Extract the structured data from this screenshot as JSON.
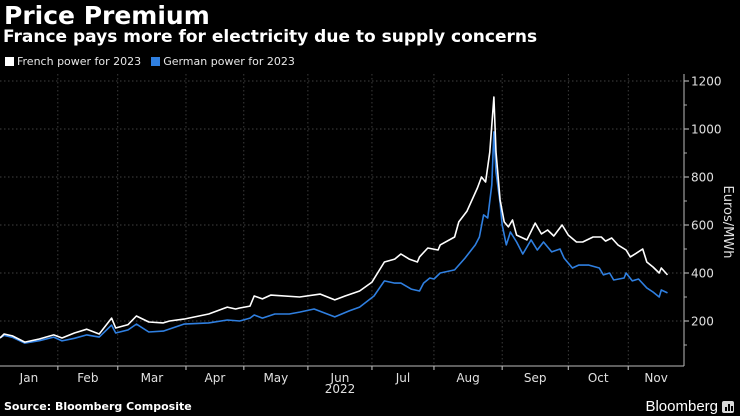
{
  "title": "Price Premium",
  "subtitle": "France pays more for electricity due to supply concerns",
  "source": "Source: Bloomberg Composite",
  "brand": "Bloomberg",
  "chart_data": {
    "type": "line",
    "title": "Price Premium",
    "subtitle": "France pays more for electricity due to supply concerns",
    "xlabel": "2022",
    "ylabel": "Euros/MWh",
    "ylim": [
      0,
      1200
    ],
    "yticks": [
      200,
      400,
      600,
      800,
      1000,
      1200
    ],
    "ytick_labels": [
      "200",
      "400",
      "600",
      "800",
      "1000",
      "1200"
    ],
    "x_unit": "day of year 2022",
    "xlim": [
      1,
      331
    ],
    "xticks": [
      {
        "label": "Jan",
        "start": 1
      },
      {
        "label": "Feb",
        "start": 29
      },
      {
        "label": "Mar",
        "start": 58
      },
      {
        "label": "Apr",
        "start": 91
      },
      {
        "label": "May",
        "start": 119
      },
      {
        "label": "Jun",
        "start": 150
      },
      {
        "label": "Jul",
        "start": 181
      },
      {
        "label": "Aug",
        "start": 211
      },
      {
        "label": "Sep",
        "start": 244
      },
      {
        "label": "Oct",
        "start": 276
      },
      {
        "label": "Nov",
        "start": 305
      }
    ],
    "year_label": "2022",
    "grid": true,
    "legend_position": "top-left",
    "series": [
      {
        "name": "French power for 2023",
        "color": "#ffffff",
        "points": [
          [
            1,
            129
          ],
          [
            3,
            146
          ],
          [
            7,
            138
          ],
          [
            13,
            112
          ],
          [
            20,
            125
          ],
          [
            27,
            142
          ],
          [
            31,
            129
          ],
          [
            37,
            150
          ],
          [
            43,
            166
          ],
          [
            49,
            146
          ],
          [
            55,
            212
          ],
          [
            57,
            171
          ],
          [
            63,
            185
          ],
          [
            67,
            221
          ],
          [
            73,
            196
          ],
          [
            80,
            192
          ],
          [
            83,
            200
          ],
          [
            90,
            208
          ],
          [
            102,
            229
          ],
          [
            111,
            258
          ],
          [
            115,
            250
          ],
          [
            122,
            262
          ],
          [
            117,
            254
          ],
          [
            124,
            304
          ],
          [
            128,
            292
          ],
          [
            132,
            308
          ],
          [
            146,
            300
          ],
          [
            156,
            312
          ],
          [
            163,
            288
          ],
          [
            168,
            304
          ],
          [
            175,
            325
          ],
          [
            181,
            362
          ],
          [
            187,
            446
          ],
          [
            192,
            458
          ],
          [
            195,
            479
          ],
          [
            199,
            458
          ],
          [
            203,
            446
          ],
          [
            204,
            467
          ],
          [
            208,
            504
          ],
          [
            213,
            496
          ],
          [
            214,
            517
          ],
          [
            221,
            550
          ],
          [
            223,
            613
          ],
          [
            227,
            658
          ],
          [
            232,
            754
          ],
          [
            234,
            800
          ],
          [
            236,
            779
          ],
          [
            238,
            904
          ],
          [
            240,
            1133
          ],
          [
            241,
            904
          ],
          [
            243,
            704
          ],
          [
            245,
            613
          ],
          [
            247,
            592
          ],
          [
            249,
            621
          ],
          [
            251,
            558
          ],
          [
            256,
            538
          ],
          [
            260,
            608
          ],
          [
            263,
            563
          ],
          [
            266,
            579
          ],
          [
            269,
            554
          ],
          [
            273,
            600
          ],
          [
            276,
            558
          ],
          [
            280,
            529
          ],
          [
            283,
            529
          ],
          [
            288,
            550
          ],
          [
            292,
            550
          ],
          [
            294,
            533
          ],
          [
            297,
            546
          ],
          [
            300,
            517
          ],
          [
            304,
            496
          ],
          [
            306,
            467
          ],
          [
            309,
            483
          ],
          [
            312,
            500
          ],
          [
            314,
            446
          ],
          [
            317,
            425
          ],
          [
            320,
            400
          ],
          [
            321,
            421
          ],
          [
            324,
            392
          ]
        ]
      },
      {
        "name": "German power for 2023",
        "color": "#2f7fe0",
        "points": [
          [
            1,
            130
          ],
          [
            3,
            140
          ],
          [
            7,
            132
          ],
          [
            13,
            108
          ],
          [
            20,
            118
          ],
          [
            27,
            133
          ],
          [
            31,
            117
          ],
          [
            37,
            128
          ],
          [
            43,
            142
          ],
          [
            49,
            133
          ],
          [
            55,
            183
          ],
          [
            57,
            150
          ],
          [
            63,
            163
          ],
          [
            67,
            187
          ],
          [
            73,
            154
          ],
          [
            80,
            158
          ],
          [
            90,
            187
          ],
          [
            102,
            192
          ],
          [
            111,
            204
          ],
          [
            117,
            200
          ],
          [
            122,
            212
          ],
          [
            124,
            225
          ],
          [
            128,
            212
          ],
          [
            134,
            229
          ],
          [
            141,
            229
          ],
          [
            146,
            237
          ],
          [
            153,
            250
          ],
          [
            163,
            217
          ],
          [
            170,
            242
          ],
          [
            175,
            258
          ],
          [
            182,
            304
          ],
          [
            187,
            367
          ],
          [
            192,
            358
          ],
          [
            195,
            358
          ],
          [
            200,
            333
          ],
          [
            204,
            325
          ],
          [
            206,
            358
          ],
          [
            209,
            379
          ],
          [
            211,
            375
          ],
          [
            214,
            400
          ],
          [
            221,
            413
          ],
          [
            226,
            462
          ],
          [
            231,
            517
          ],
          [
            233,
            550
          ],
          [
            235,
            642
          ],
          [
            237,
            629
          ],
          [
            239,
            767
          ],
          [
            240,
            988
          ],
          [
            241,
            821
          ],
          [
            243,
            692
          ],
          [
            244,
            600
          ],
          [
            246,
            517
          ],
          [
            248,
            571
          ],
          [
            251,
            529
          ],
          [
            254,
            479
          ],
          [
            258,
            538
          ],
          [
            261,
            496
          ],
          [
            264,
            529
          ],
          [
            268,
            488
          ],
          [
            272,
            500
          ],
          [
            274,
            462
          ],
          [
            278,
            421
          ],
          [
            281,
            433
          ],
          [
            286,
            433
          ],
          [
            291,
            421
          ],
          [
            293,
            392
          ],
          [
            296,
            400
          ],
          [
            298,
            371
          ],
          [
            303,
            379
          ],
          [
            304,
            400
          ],
          [
            307,
            367
          ],
          [
            310,
            375
          ],
          [
            314,
            338
          ],
          [
            317,
            321
          ],
          [
            320,
            300
          ],
          [
            321,
            329
          ],
          [
            324,
            317
          ]
        ]
      }
    ]
  }
}
